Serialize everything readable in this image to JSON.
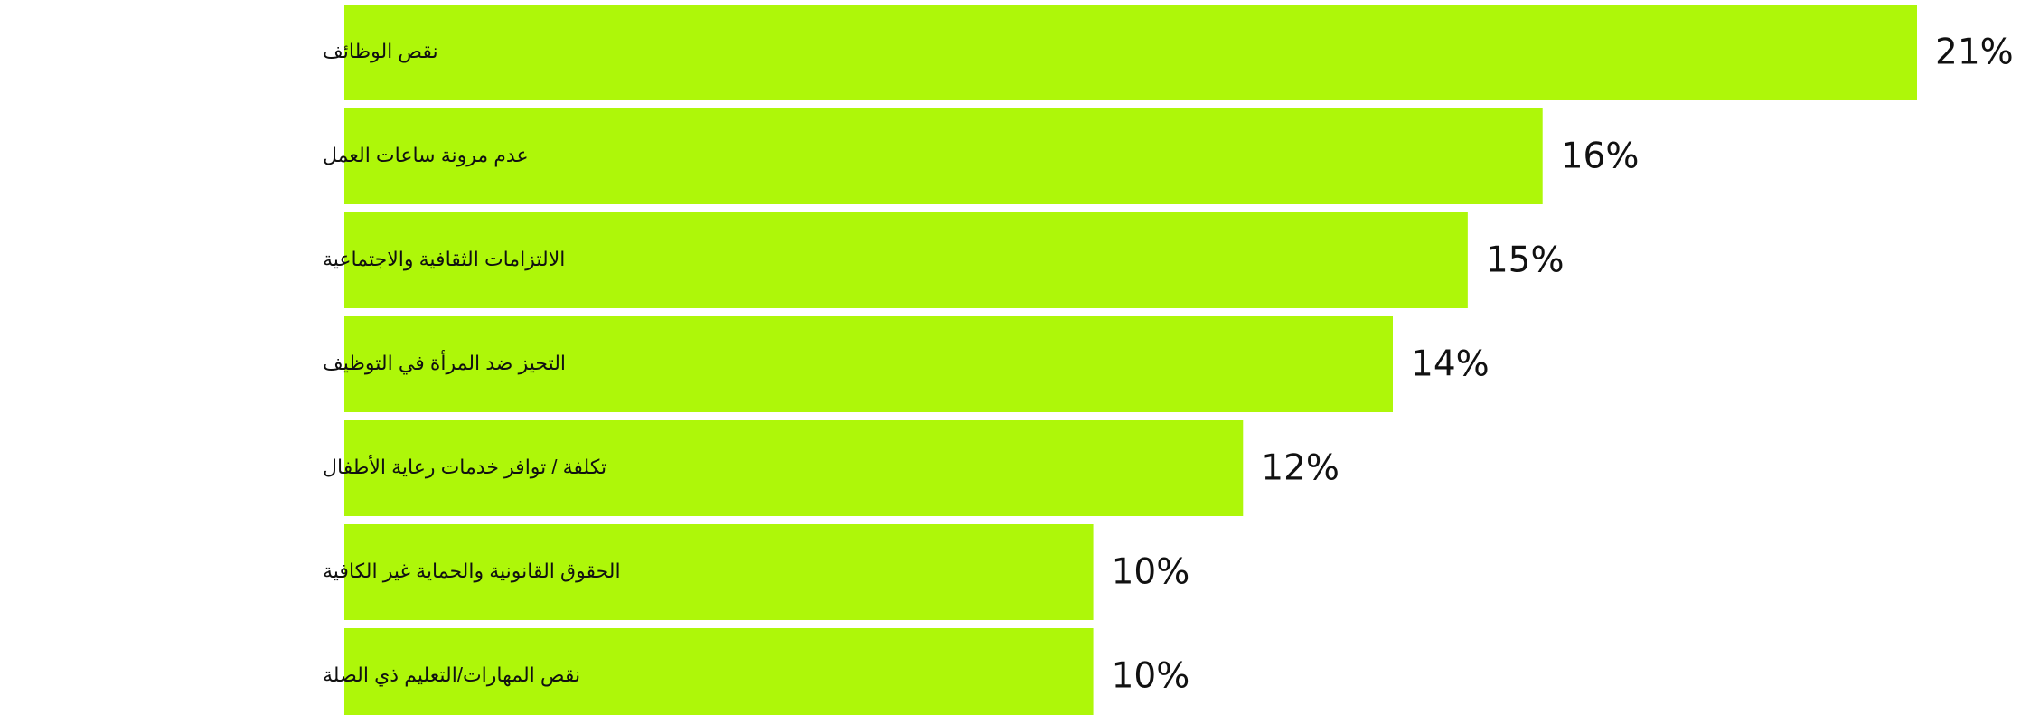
{
  "colors": {
    "bar": "#aef709",
    "text": "#111111",
    "background": "#ffffff"
  },
  "chart_data": {
    "type": "bar",
    "orientation": "horizontal",
    "title": "",
    "xlabel": "",
    "ylabel": "",
    "grid": false,
    "legend": "none",
    "xlim": [
      0,
      21
    ],
    "categories": [
      "نقص الوظائف",
      "عدم مرونة ساعات العمل",
      "الالتزامات الثقافية والاجتماعية",
      "التحيز ضد المرأة في التوظيف",
      "تكلفة / توافر خدمات رعاية الأطفال",
      "الحقوق القانونية والحماية غير الكافية",
      "نقص المهارات/التعليم ذي الصلة"
    ],
    "values": [
      21,
      16,
      15,
      14,
      12,
      10,
      10
    ],
    "value_labels": [
      "21%",
      "16%",
      "15%",
      "14%",
      "12%",
      "10%",
      "10%"
    ]
  }
}
